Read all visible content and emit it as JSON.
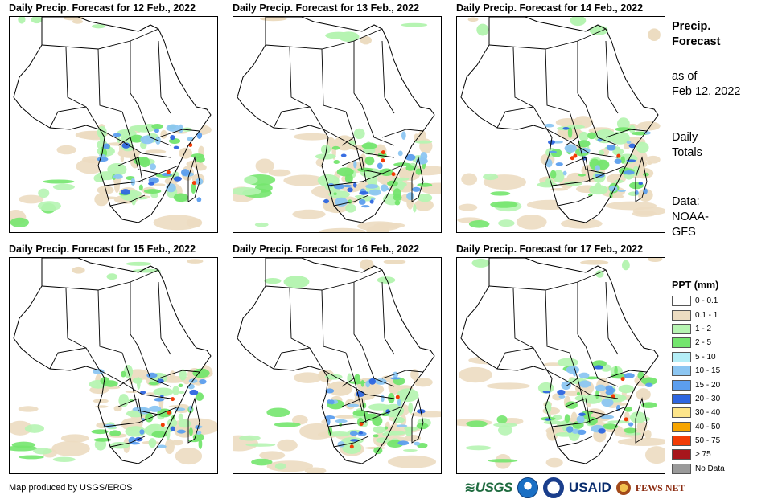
{
  "panels": [
    {
      "title": "Daily Precip. Forecast for 12 Feb., 2022"
    },
    {
      "title": "Daily Precip. Forecast for 13 Feb., 2022"
    },
    {
      "title": "Daily Precip. Forecast for 14 Feb., 2022"
    },
    {
      "title": "Daily Precip. Forecast for 15 Feb., 2022"
    },
    {
      "title": "Daily Precip. Forecast for 16 Feb., 2022"
    },
    {
      "title": "Daily Precip. Forecast for 17 Feb., 2022"
    }
  ],
  "sidebar": {
    "title_line1": "Precip.",
    "title_line2": "Forecast",
    "asof_line1": "as of",
    "asof_line2": "Feb 12, 2022",
    "type_line1": "Daily",
    "type_line2": "Totals",
    "data_line1": "Data:",
    "data_line2": "NOAA-",
    "data_line3": "GFS"
  },
  "legend": {
    "title": "PPT (mm)",
    "items": [
      {
        "label": "0 - 0.1",
        "color": "#ffffff"
      },
      {
        "label": "0.1 - 1",
        "color": "#ecdcc1"
      },
      {
        "label": "1 - 2",
        "color": "#b6f4b2"
      },
      {
        "label": "2 - 5",
        "color": "#74e56e"
      },
      {
        "label": "5 - 10",
        "color": "#b4eef7"
      },
      {
        "label": "10 - 15",
        "color": "#8cc6f2"
      },
      {
        "label": "15 - 20",
        "color": "#5c9eee"
      },
      {
        "label": "20 - 30",
        "color": "#2e66e0"
      },
      {
        "label": "30 - 40",
        "color": "#fde58a"
      },
      {
        "label": "40 - 50",
        "color": "#f7a500"
      },
      {
        "label": "50 - 75",
        "color": "#f23c06"
      },
      {
        "label": "> 75",
        "color": "#a7161c"
      },
      {
        "label": "No Data",
        "color": "#9a9a9a"
      }
    ]
  },
  "footer": {
    "credit": "Map produced by USGS/EROS",
    "logo_usgs": "≋USGS",
    "logo_usaid": "USAID",
    "logo_fews": "FEWS NET"
  }
}
